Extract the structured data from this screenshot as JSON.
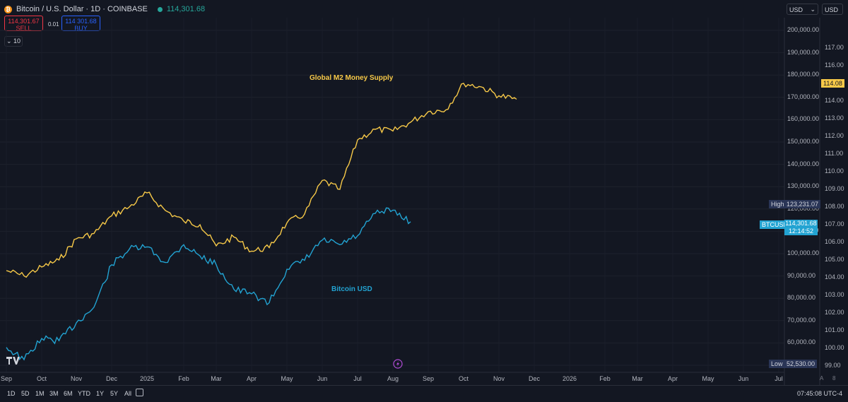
{
  "header": {
    "symbol_title": "Bitcoin / U.S. Dollar · 1D · COINBASE",
    "last_price": "114,301.68",
    "sell_price": "114,301.67",
    "sell_label": "SELL",
    "spread": "0.01",
    "buy_price": "114,301.68",
    "buy_label": "BUY",
    "lot_size": "10",
    "currency_left": "USD",
    "currency_right": "USD"
  },
  "annotations": {
    "m2_label": "Global M2 Money Supply",
    "btc_label": "Bitcoin USD"
  },
  "price_tags": {
    "high_label": "High",
    "high_value": "123,231.07",
    "btc_symbol": "BTCUSD",
    "btc_value": "114,301.68",
    "btc_countdown": "12:14:52",
    "m2_value": "114.08",
    "low_label": "Low",
    "low_value": "52,530.00"
  },
  "bottom_bar": {
    "ranges": [
      "1D",
      "5D",
      "1M",
      "3M",
      "6M",
      "YTD",
      "1Y",
      "5Y",
      "All"
    ],
    "clock": "07:45:08 UTC-4",
    "scale_auto": "A",
    "scale_log": "8"
  },
  "chart_data": {
    "type": "line",
    "title": "",
    "left_axis": {
      "ticks": [
        "200,000.00",
        "190,000.00",
        "180,000.00",
        "170,000.00",
        "160,000.00",
        "150,000.00",
        "140,000.00",
        "130,000.00",
        "120,000.00",
        "110,000.00",
        "100,000.00",
        "90,000.00",
        "80,000.00",
        "70,000.00",
        "60,000.00",
        "50,000.00"
      ],
      "ylim": [
        50000,
        200000
      ]
    },
    "right_axis": {
      "ticks": [
        "117.00",
        "116.00",
        "115.00",
        "114.00",
        "113.00",
        "112.00",
        "111.00",
        "110.00",
        "109.00",
        "108.00",
        "107.00",
        "106.00",
        "105.00",
        "104.00",
        "103.00",
        "102.00",
        "101.00",
        "100.00",
        "99.00"
      ],
      "ylim": [
        99,
        117
      ]
    },
    "x_ticks": [
      "Sep",
      "Oct",
      "Nov",
      "Dec",
      "2025",
      "Feb",
      "Mar",
      "Apr",
      "May",
      "Jun",
      "Jul",
      "Aug",
      "Sep",
      "Oct",
      "Nov",
      "Dec",
      "2026",
      "Feb",
      "Mar",
      "Apr",
      "May",
      "Jun",
      "Jul"
    ],
    "series": [
      {
        "name": "Global M2 Money Supply",
        "axis": "right",
        "color": "#f7c948",
        "points": [
          [
            "Sep",
            104.4
          ],
          [
            "Sep",
            104.1
          ],
          [
            "Oct",
            104.6
          ],
          [
            "Oct",
            105.0
          ],
          [
            "Nov",
            106.2
          ],
          [
            "Nov",
            106.5
          ],
          [
            "Dec",
            107.5
          ],
          [
            "Dec",
            108.0
          ],
          [
            "2025",
            108.8
          ],
          [
            "2025",
            107.8
          ],
          [
            "Feb",
            107.2
          ],
          [
            "Feb",
            107.0
          ],
          [
            "Mar",
            105.8
          ],
          [
            "Mar",
            106.3
          ],
          [
            "Apr",
            105.5
          ],
          [
            "Apr",
            105.7
          ],
          [
            "May",
            107.1
          ],
          [
            "May",
            107.6
          ],
          [
            "Jun",
            109.5
          ],
          [
            "Jun",
            109.0
          ],
          [
            "Jul",
            111.8
          ],
          [
            "Jul",
            112.4
          ],
          [
            "Aug",
            112.3
          ],
          [
            "Aug",
            112.8
          ],
          [
            "Sep",
            113.4
          ],
          [
            "Sep",
            113.5
          ],
          [
            "Oct",
            115.0
          ],
          [
            "Oct",
            114.8
          ],
          [
            "Nov",
            114.3
          ],
          [
            "Nov",
            114.1
          ]
        ]
      },
      {
        "name": "Bitcoin USD",
        "axis": "left",
        "color": "#22a3d2",
        "points": [
          [
            "Sep",
            58000
          ],
          [
            "Sep",
            52530
          ],
          [
            "Oct",
            62000
          ],
          [
            "Oct",
            61000
          ],
          [
            "Nov",
            69000
          ],
          [
            "Nov",
            76000
          ],
          [
            "Dec",
            95000
          ],
          [
            "Dec",
            102000
          ],
          [
            "2025",
            103000
          ],
          [
            "2025",
            96000
          ],
          [
            "Feb",
            104000
          ],
          [
            "Feb",
            99000
          ],
          [
            "Mar",
            95000
          ],
          [
            "Mar",
            84000
          ],
          [
            "Apr",
            82000
          ],
          [
            "Apr",
            78000
          ],
          [
            "May",
            93000
          ],
          [
            "May",
            97000
          ],
          [
            "Jun",
            106000
          ],
          [
            "Jun",
            104000
          ],
          [
            "Jul",
            108000
          ],
          [
            "Jul",
            118000
          ],
          [
            "Aug",
            119500
          ],
          [
            "Aug",
            114301.68
          ]
        ]
      }
    ],
    "grid": true
  }
}
